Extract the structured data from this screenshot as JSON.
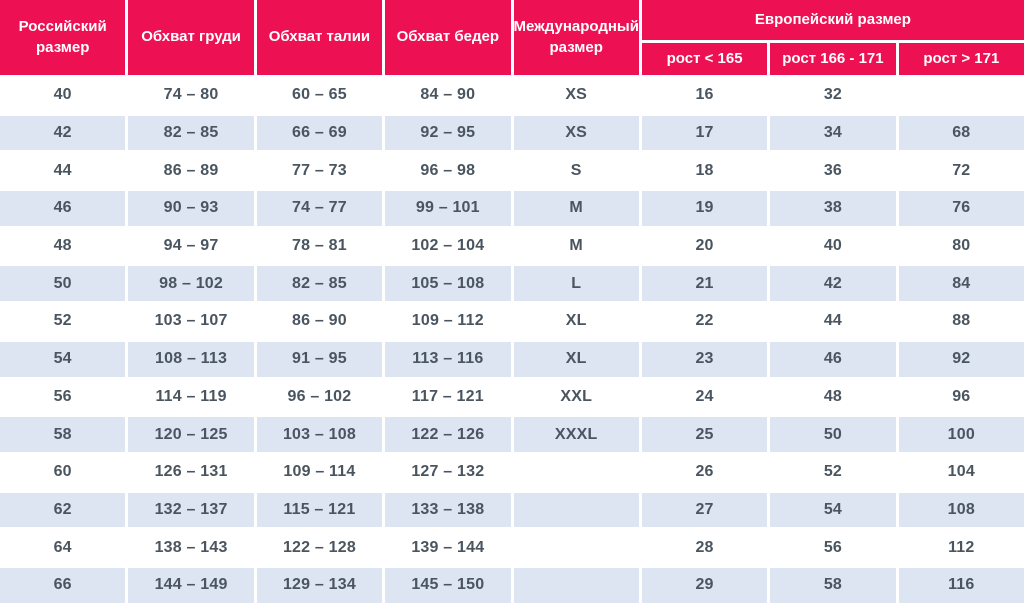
{
  "chart_data": {
    "type": "table",
    "columns": [
      "Российский размер",
      "Обхват груди",
      "Обхват талии",
      "Обхват бедер",
      "Международный размер",
      "Европейский размер / рост < 165",
      "Европейский размер / рост 166 - 171",
      "Европейский размер / рост > 171"
    ],
    "rows": [
      [
        "40",
        "74 – 80",
        "60 – 65",
        "84 – 90",
        "XS",
        "16",
        "32",
        ""
      ],
      [
        "42",
        "82 – 85",
        "66 – 69",
        "92 – 95",
        "XS",
        "17",
        "34",
        "68"
      ],
      [
        "44",
        "86 – 89",
        "77 – 73",
        "96 – 98",
        "S",
        "18",
        "36",
        "72"
      ],
      [
        "46",
        "90 – 93",
        "74 – 77",
        "99 – 101",
        "M",
        "19",
        "38",
        "76"
      ],
      [
        "48",
        "94 – 97",
        "78 – 81",
        "102 – 104",
        "M",
        "20",
        "40",
        "80"
      ],
      [
        "50",
        "98 – 102",
        "82 – 85",
        "105 – 108",
        "L",
        "21",
        "42",
        "84"
      ],
      [
        "52",
        "103 – 107",
        "86 – 90",
        "109 – 112",
        "XL",
        "22",
        "44",
        "88"
      ],
      [
        "54",
        "108 – 113",
        "91 – 95",
        "113 – 116",
        "XL",
        "23",
        "46",
        "92"
      ],
      [
        "56",
        "114 – 119",
        "96 – 102",
        "117 – 121",
        "XXL",
        "24",
        "48",
        "96"
      ],
      [
        "58",
        "120 – 125",
        "103 – 108",
        "122 – 126",
        "XXXL",
        "25",
        "50",
        "100"
      ],
      [
        "60",
        "126 – 131",
        "109 – 114",
        "127 – 132",
        "",
        "26",
        "52",
        "104"
      ],
      [
        "62",
        "132 – 137",
        "115 – 121",
        "133 – 138",
        "",
        "27",
        "54",
        "108"
      ],
      [
        "64",
        "138 – 143",
        "122 – 128",
        "139 – 144",
        "",
        "28",
        "56",
        "112"
      ],
      [
        "66",
        "144 – 149",
        "129 – 134",
        "145 – 150",
        "",
        "29",
        "58",
        "116"
      ]
    ]
  },
  "table": {
    "header": {
      "russian_size": "Российский размер",
      "chest": "Обхват груди",
      "waist": "Обхват талии",
      "hips": "Обхват бедер",
      "international_size": "Международный размер",
      "european_size": "Европейский размер",
      "height_lt_165": "рост < 165",
      "height_166_171": "рост 166 - 171",
      "height_gt_171": "рост > 171"
    },
    "colors": {
      "header_bg": "#ED1154",
      "header_text": "#FFFFFF",
      "row_bg": "#FFFFFF",
      "row_alt_bg": "#DCE5F1",
      "body_text": "#4A5560",
      "separator": "#FFFFFF"
    }
  }
}
